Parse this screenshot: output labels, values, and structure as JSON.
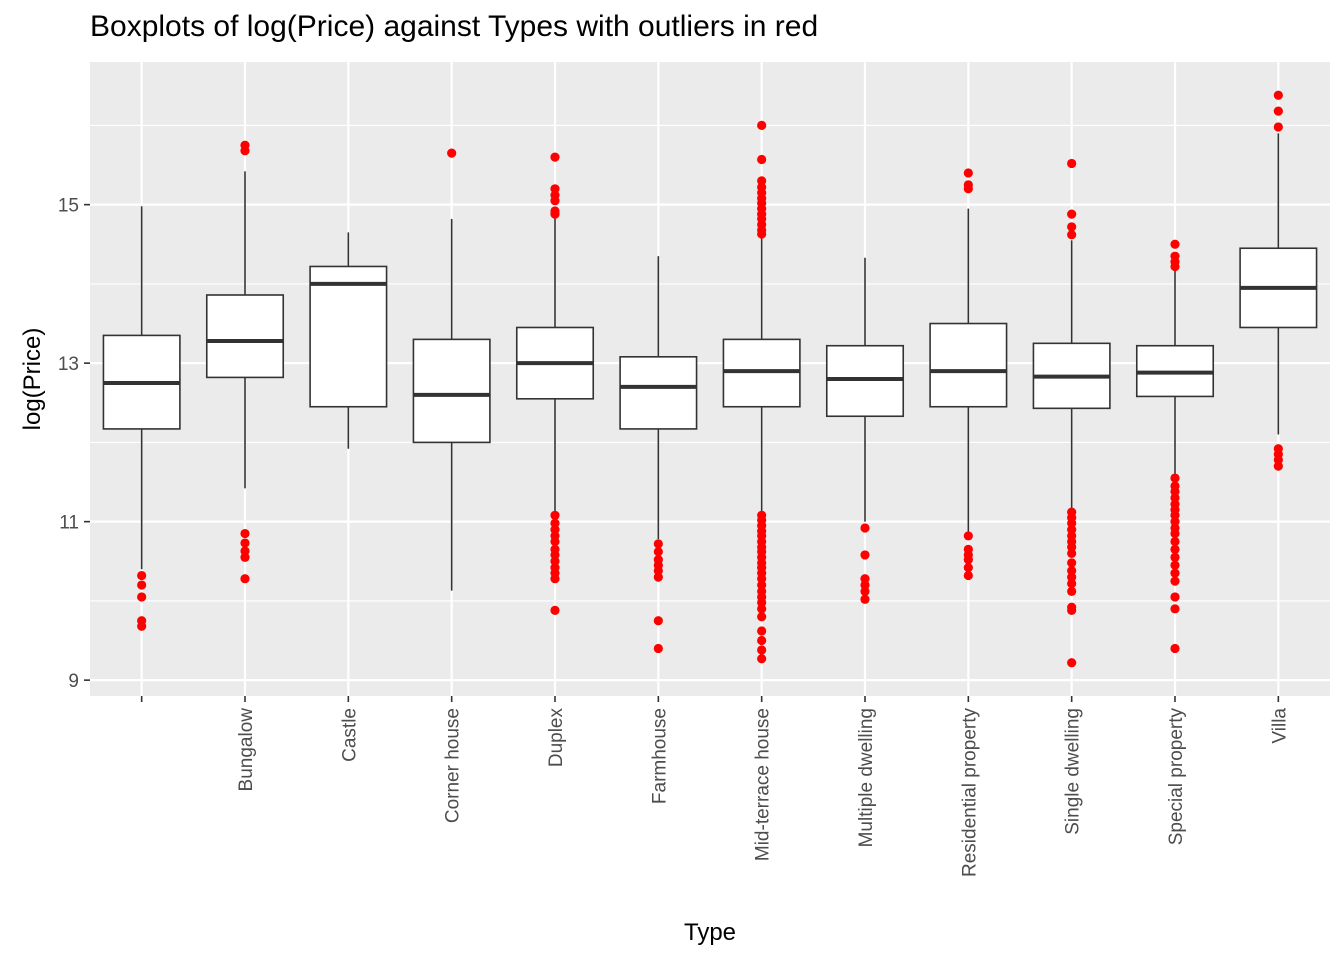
{
  "chart_data": {
    "type": "boxplot",
    "title": "Boxplots of log(Price) against Types with outliers in red",
    "xlabel": "Type",
    "ylabel": "log(Price)",
    "ylim": [
      8.8,
      16.8
    ],
    "yticks": [
      9,
      11,
      13,
      15
    ],
    "grid": true,
    "legend": "none",
    "colors": {
      "panel": "#ebebeb",
      "grid": "#ffffff",
      "box_fill": "#ffffff",
      "box_line": "#333333",
      "outlier": "#ff0000",
      "tick_text": "#4d4d4d"
    },
    "categories": [
      "",
      "Bungalow",
      "Castle",
      "Corner house",
      "Duplex",
      "Farmhouse",
      "Mid-terrace house",
      "Multiple dwelling",
      "Residential property",
      "Single dwelling",
      "Special property",
      "Villa"
    ],
    "boxes": [
      {
        "category": "",
        "whisker_low": 10.4,
        "q1": 12.17,
        "median": 12.75,
        "q3": 13.35,
        "whisker_high": 14.98,
        "outliers": [
          10.32,
          10.2,
          10.05,
          9.75,
          9.68
        ]
      },
      {
        "category": "Bungalow",
        "whisker_low": 11.42,
        "q1": 12.82,
        "median": 13.28,
        "q3": 13.86,
        "whisker_high": 15.42,
        "outliers": [
          15.75,
          15.68,
          10.85,
          10.73,
          10.63,
          10.55,
          10.28
        ]
      },
      {
        "category": "Castle",
        "whisker_low": 11.92,
        "q1": 12.45,
        "median": 14.0,
        "q3": 14.22,
        "whisker_high": 14.65,
        "outliers": []
      },
      {
        "category": "Corner house",
        "whisker_low": 10.13,
        "q1": 12.0,
        "median": 12.6,
        "q3": 13.3,
        "whisker_high": 14.82,
        "outliers": [
          15.65
        ]
      },
      {
        "category": "Duplex",
        "whisker_low": 11.12,
        "q1": 12.55,
        "median": 13.0,
        "q3": 13.45,
        "whisker_high": 14.85,
        "outliers": [
          15.6,
          15.2,
          15.12,
          15.05,
          14.92,
          14.88,
          11.08,
          10.98,
          10.9,
          10.82,
          10.75,
          10.65,
          10.58,
          10.5,
          10.42,
          10.35,
          10.28,
          9.88
        ]
      },
      {
        "category": "Farmhouse",
        "whisker_low": 10.78,
        "q1": 12.17,
        "median": 12.7,
        "q3": 13.08,
        "whisker_high": 14.35,
        "outliers": [
          10.72,
          10.62,
          10.52,
          10.45,
          10.38,
          10.3,
          9.75,
          9.4
        ]
      },
      {
        "category": "Mid-terrace house",
        "whisker_low": 11.12,
        "q1": 12.45,
        "median": 12.9,
        "q3": 13.3,
        "whisker_high": 14.6,
        "outliers": [
          16.0,
          15.57,
          15.3,
          15.22,
          15.15,
          15.08,
          15.02,
          14.95,
          14.88,
          14.82,
          14.75,
          14.68,
          14.63,
          11.08,
          11.02,
          10.95,
          10.88,
          10.82,
          10.75,
          10.68,
          10.62,
          10.55,
          10.48,
          10.42,
          10.35,
          10.28,
          10.2,
          10.12,
          10.05,
          9.98,
          9.9,
          9.8,
          9.62,
          9.5,
          9.38,
          9.27
        ]
      },
      {
        "category": "Multiple dwelling",
        "whisker_low": 11.0,
        "q1": 12.33,
        "median": 12.8,
        "q3": 13.22,
        "whisker_high": 14.33,
        "outliers": [
          10.92,
          10.58,
          10.28,
          10.2,
          10.12,
          10.02
        ]
      },
      {
        "category": "Residential property",
        "whisker_low": 10.85,
        "q1": 12.45,
        "median": 12.9,
        "q3": 13.5,
        "whisker_high": 14.95,
        "outliers": [
          15.4,
          15.25,
          15.2,
          10.82,
          10.65,
          10.58,
          10.52,
          10.42,
          10.32
        ]
      },
      {
        "category": "Single dwelling",
        "whisker_low": 11.15,
        "q1": 12.43,
        "median": 12.83,
        "q3": 13.25,
        "whisker_high": 14.55,
        "outliers": [
          15.52,
          14.88,
          14.72,
          14.62,
          11.12,
          11.05,
          10.98,
          10.9,
          10.82,
          10.75,
          10.68,
          10.6,
          10.48,
          10.38,
          10.3,
          10.22,
          10.12,
          9.92,
          9.88,
          9.22
        ]
      },
      {
        "category": "Special property",
        "whisker_low": 11.58,
        "q1": 12.58,
        "median": 12.88,
        "q3": 13.22,
        "whisker_high": 14.18,
        "outliers": [
          14.5,
          14.35,
          14.28,
          14.22,
          11.55,
          11.45,
          11.38,
          11.3,
          11.22,
          11.15,
          11.08,
          11.0,
          10.92,
          10.85,
          10.75,
          10.65,
          10.55,
          10.45,
          10.35,
          10.25,
          10.05,
          9.9,
          9.4
        ]
      },
      {
        "category": "Villa",
        "whisker_low": 12.1,
        "q1": 13.45,
        "median": 13.95,
        "q3": 14.45,
        "whisker_high": 15.9,
        "outliers": [
          16.38,
          16.18,
          15.98,
          11.92,
          11.85,
          11.78,
          11.7
        ]
      }
    ]
  }
}
